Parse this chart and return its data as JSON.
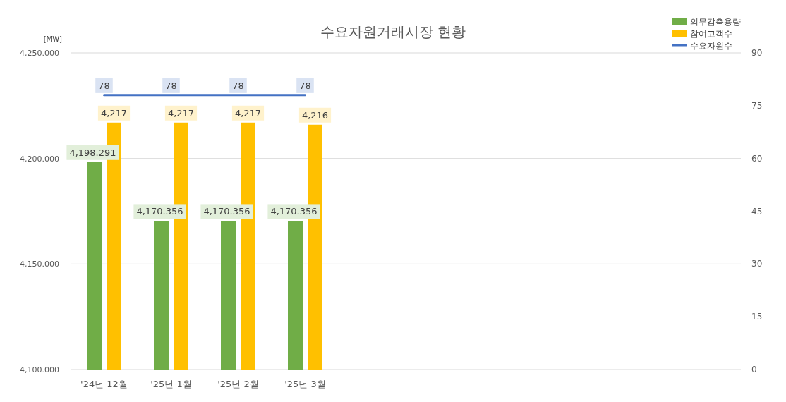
{
  "chart_data": {
    "type": "bar",
    "title": "수요자원거래시장 현황",
    "ylabel": "[MW]",
    "categories": [
      "'24년 12월",
      "'25년 1월",
      "'25년 2월",
      "'25년 3월",
      null,
      null,
      null,
      null,
      null,
      null
    ],
    "series": [
      {
        "name": "의무감축용량",
        "type": "bar",
        "color": "#70ad47",
        "values": [
          4198.291,
          4170.356,
          4170.356,
          4170.356,
          null,
          null,
          null,
          null,
          null,
          null
        ],
        "value_labels": [
          "4,198.291",
          "4,170.356",
          "4,170.356",
          "4,170.356",
          null,
          null,
          null,
          null,
          null,
          null
        ]
      },
      {
        "name": "참여고객수",
        "type": "bar",
        "color": "#ffc000",
        "values": [
          4217,
          4217,
          4217,
          4216,
          null,
          null,
          null,
          null,
          null,
          null
        ],
        "value_labels": [
          "4,217",
          "4,217",
          "4,217",
          "4,216",
          null,
          null,
          null,
          null,
          null,
          null
        ]
      },
      {
        "name": "수요자원수",
        "type": "line",
        "axis": "y2",
        "color": "#4472c4",
        "values": [
          78,
          78,
          78,
          78,
          null,
          null,
          null,
          null,
          null,
          null
        ],
        "value_labels": [
          "78",
          "78",
          "78",
          "78",
          null,
          null,
          null,
          null,
          null,
          null
        ]
      }
    ],
    "ylim": [
      4100,
      4250
    ],
    "yticks": [
      {
        "value": 4100,
        "label": "4,100.000"
      },
      {
        "value": 4150,
        "label": "4,150.000"
      },
      {
        "value": 4200,
        "label": "4,200.000"
      },
      {
        "value": 4250,
        "label": "4,250.000"
      }
    ],
    "y2lim": [
      0,
      90
    ],
    "y2ticks": [
      0,
      15,
      30,
      45,
      60,
      75,
      90
    ],
    "grid": "y",
    "legend": "top right"
  }
}
